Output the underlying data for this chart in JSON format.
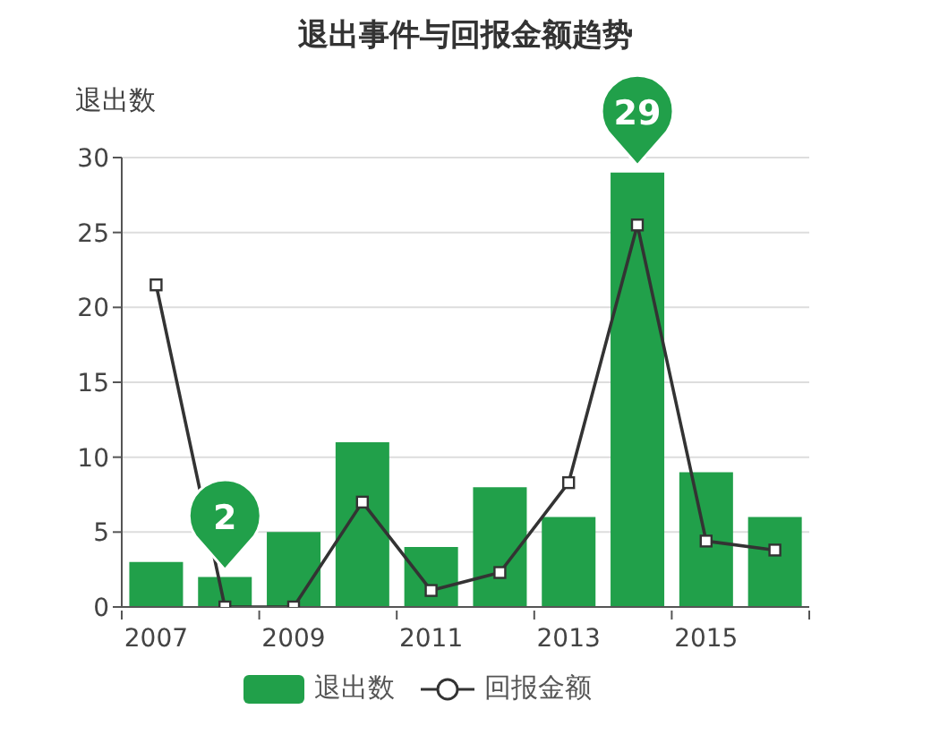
{
  "chart_data": {
    "type": "bar",
    "title": "退出事件与回报金额趋势",
    "ylabel": "退出数",
    "categories": [
      "2007",
      null,
      "2009",
      null,
      "2011",
      null,
      "2013",
      null,
      "2015",
      null
    ],
    "ylim": [
      0,
      30
    ],
    "yticks": [
      0,
      5,
      10,
      15,
      20,
      25,
      30
    ],
    "grid": "y",
    "legend": "bottom",
    "series": [
      {
        "name": "退出数",
        "color": "#21a04a",
        "values": [
          3,
          2,
          5,
          11,
          4,
          8,
          6,
          29,
          9,
          6
        ],
        "value_labels": [
          null,
          "2",
          null,
          null,
          null,
          null,
          null,
          "29",
          null,
          null
        ]
      },
      {
        "name": "回报金额",
        "type": "line",
        "color": "#333333",
        "marker": "square",
        "values": [
          21.5,
          0,
          0,
          7,
          1.1,
          2.3,
          8.3,
          25.5,
          4.4,
          3.8
        ]
      }
    ]
  }
}
